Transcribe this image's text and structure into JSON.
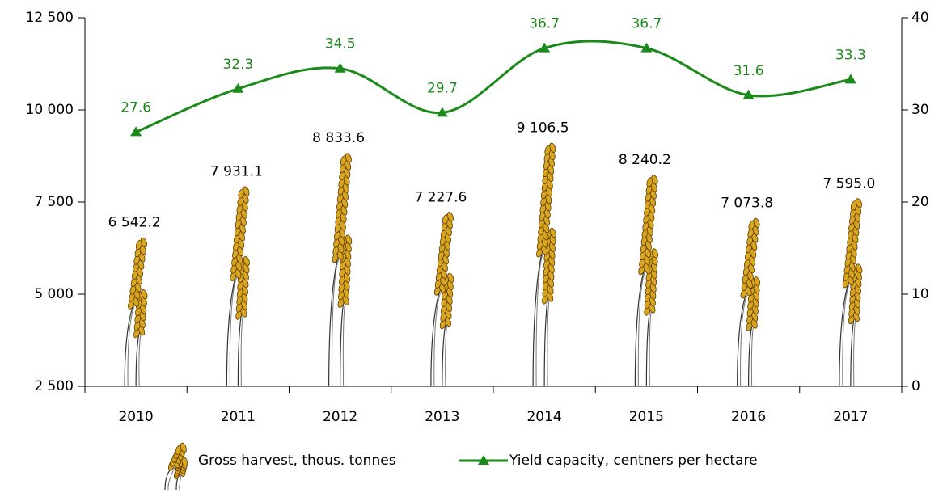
{
  "chart_data": {
    "type": "bar",
    "categories": [
      "2010",
      "2011",
      "2012",
      "2013",
      "2014",
      "2015",
      "2016",
      "2017"
    ],
    "series": [
      {
        "name": "Gross harvest, thous. tonnes",
        "type": "bar",
        "color": "#d9a520",
        "values": [
          6542.2,
          7931.1,
          8833.6,
          7227.6,
          9106.5,
          8240.2,
          7073.8,
          7595.0
        ],
        "value_labels": [
          "6 542.2",
          "7 931.1",
          "8 833.6",
          "7 227.6",
          "9 106.5",
          "8 240.2",
          "7 073.8",
          "7 595.0"
        ]
      },
      {
        "name": "Yield capacity, centners per hectare",
        "type": "line",
        "axis": "y2",
        "color": "#1a8a1a",
        "values": [
          27.6,
          32.3,
          34.5,
          29.7,
          36.7,
          36.7,
          31.6,
          33.3
        ]
      }
    ],
    "ylim": [
      2500,
      12500
    ],
    "yticks": [
      {
        "value": 2500,
        "label": "2 500"
      },
      {
        "value": 5000,
        "label": "5 000"
      },
      {
        "value": 7500,
        "label": "7 500"
      },
      {
        "value": 10000,
        "label": "10 000"
      },
      {
        "value": 12500,
        "label": "12 500"
      }
    ],
    "y2lim": [
      0,
      40
    ],
    "y2ticks": [
      0,
      10,
      20,
      30,
      40
    ],
    "grid": false,
    "legend": "bottom"
  }
}
